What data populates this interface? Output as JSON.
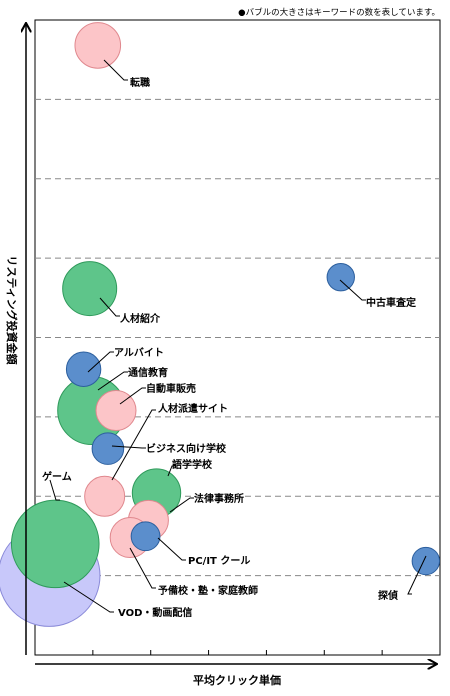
{
  "chart_data": {
    "type": "scatter",
    "title": "",
    "note": "●バブルの大きさはキーワードの数を表しています。",
    "xlabel": "平均クリック単価",
    "ylabel": "リスティング投資金額",
    "xlim": [
      0,
      10
    ],
    "ylim": [
      0,
      10
    ],
    "grid": true,
    "points": [
      {
        "label": "転職",
        "x": 1.55,
        "y": 9.6,
        "size": 1.2,
        "color": "#fcc5c8"
      },
      {
        "label": "人材紹介",
        "x": 1.35,
        "y": 5.77,
        "size": 1.5,
        "color": "#5ec58a"
      },
      {
        "label": "中古車査定",
        "x": 7.55,
        "y": 5.95,
        "size": 0.55,
        "color": "#5b8ecc"
      },
      {
        "label": "アルバイト",
        "x": 1.2,
        "y": 4.5,
        "size": 0.8,
        "color": "#5b8ecc"
      },
      {
        "label": "通信教育",
        "x": 1.4,
        "y": 3.85,
        "size": 2.0,
        "color": "#5ec58a"
      },
      {
        "label": "自動車販売",
        "x": 2.0,
        "y": 3.85,
        "size": 1.0,
        "color": "#fcc5c8"
      },
      {
        "label": "ビジネス向け学校",
        "x": 1.8,
        "y": 3.25,
        "size": 0.7,
        "color": "#5b8ecc"
      },
      {
        "label": "人材派遣サイト",
        "x": 1.72,
        "y": 2.5,
        "size": 1.0,
        "color": "#fcc5c8"
      },
      {
        "label": "語学学校",
        "x": 3.0,
        "y": 2.55,
        "size": 1.3,
        "color": "#5ec58a"
      },
      {
        "label": "法律事務所",
        "x": 2.8,
        "y": 2.12,
        "size": 1.0,
        "color": "#fcc5c8"
      },
      {
        "label": "ゲーム",
        "x": 0.5,
        "y": 1.75,
        "size": 2.7,
        "color": "#5ec58a"
      },
      {
        "label": "予備校・塾・家庭教師",
        "x": 2.35,
        "y": 1.85,
        "size": 1.0,
        "color": "#fcc5c8"
      },
      {
        "label": "PC/IT クール",
        "x": 2.73,
        "y": 1.87,
        "size": 0.6,
        "color": "#5b8ecc"
      },
      {
        "label": "探偵",
        "x": 9.65,
        "y": 1.48,
        "size": 0.55,
        "color": "#5b8ecc"
      },
      {
        "label": "VOD・動画配信",
        "x": 0.35,
        "y": 1.25,
        "size": 3.2,
        "color": "#c8c8fa"
      }
    ]
  }
}
